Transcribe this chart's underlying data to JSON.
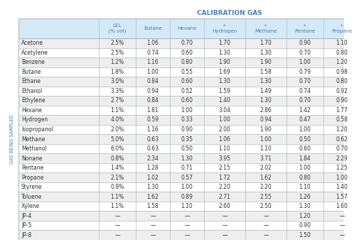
{
  "title": "CALIBRATION GAS",
  "side_label": "GAS BEING SAMPLED",
  "col_headers": [
    "LEL\n(% vol)",
    "Butane",
    "Hexane",
    "*\nHydrogen",
    "*\nMethane",
    "*\nPentane",
    "*\nPropane"
  ],
  "row_labels": [
    "Acetone",
    "Acetylene",
    "Benzene",
    "Butane",
    "Ethane",
    "Ethanol",
    "Ethylene",
    "Hexane",
    "Hydrogen",
    "Isopropanol",
    "Methane",
    "Methanol",
    "Nonane",
    "Pentane",
    "Propane",
    "Styrene",
    "Toluene",
    "Xylene",
    "JP-4",
    "JP-5",
    "JP-8"
  ],
  "table_data": [
    [
      "2.5%",
      "1.06",
      "0.70",
      "1.70",
      "1.70",
      "0.90",
      "1.10"
    ],
    [
      "2.5%",
      "0.74",
      "0.60",
      "1.30",
      "1.30",
      "0.70",
      "0.80"
    ],
    [
      "1.2%",
      "1.16",
      "0.80",
      "1.90",
      "1.90",
      "1.00",
      "1.20"
    ],
    [
      "1.8%",
      "1.00",
      "0.55",
      "1.69",
      "1.58",
      "0.79",
      "0.98"
    ],
    [
      "3.0%",
      "0.84",
      "0.60",
      "1.30",
      "1.30",
      "0.70",
      "0.80"
    ],
    [
      "3.3%",
      "0.94",
      "0.52",
      "1.59",
      "1.49",
      "0.74",
      "0.92"
    ],
    [
      "2.7%",
      "0.84",
      "0.60",
      "1.40",
      "1.30",
      "0.70",
      "0.90"
    ],
    [
      "1.1%",
      "1.81",
      "1.00",
      "3.04",
      "2.86",
      "1.42",
      "1.77"
    ],
    [
      "4.0%",
      "0.59",
      "0.33",
      "1.00",
      "0.94",
      "0.47",
      "0.58"
    ],
    [
      "2.0%",
      "1.16",
      "0.90",
      "2.00",
      "1.90",
      "1.00",
      "1.20"
    ],
    [
      "5.0%",
      "0.63",
      "0.35",
      "1.06",
      "1.00",
      "0.50",
      "0.62"
    ],
    [
      "6.0%",
      "0.63",
      "0.50",
      "1.10",
      "1.10",
      "0.60",
      "0.70"
    ],
    [
      "0.8%",
      "2.34",
      "1.30",
      "3.95",
      "3.71",
      "1.84",
      "2.29"
    ],
    [
      "1.4%",
      "1.28",
      "0.71",
      "2.15",
      "2.02",
      "1.00",
      "1.25"
    ],
    [
      "2.1%",
      "1.02",
      "0.57",
      "1.72",
      "1.62",
      "0.80",
      "1.00"
    ],
    [
      "0.9%",
      "1.30",
      "1.00",
      "2.20",
      "2.20",
      "1.10",
      "1.40"
    ],
    [
      "1.1%",
      "1.62",
      "0.89",
      "2.71",
      "2.55",
      "1.26",
      "1.57"
    ],
    [
      "1.1%",
      "1.58",
      "1.10",
      "2.60",
      "2.50",
      "1.30",
      "1.60"
    ],
    [
      "—",
      "—",
      "—",
      "—",
      "—",
      "1.20",
      "—"
    ],
    [
      "—",
      "—",
      "—",
      "—",
      "—",
      "0.90",
      "—"
    ],
    [
      "—",
      "—",
      "—",
      "—",
      "—",
      "1.50",
      "—"
    ]
  ],
  "header_bg": "#d4eaf7",
  "row_bg_odd": "#eeeeee",
  "row_bg_even": "#ffffff",
  "border_color": "#b0b8c0",
  "text_color": "#333333",
  "header_text_color": "#4a7fb5",
  "title_color": "#4a7fb5",
  "side_label_color": "#4a7fb5",
  "fig_bg": "#ffffff"
}
